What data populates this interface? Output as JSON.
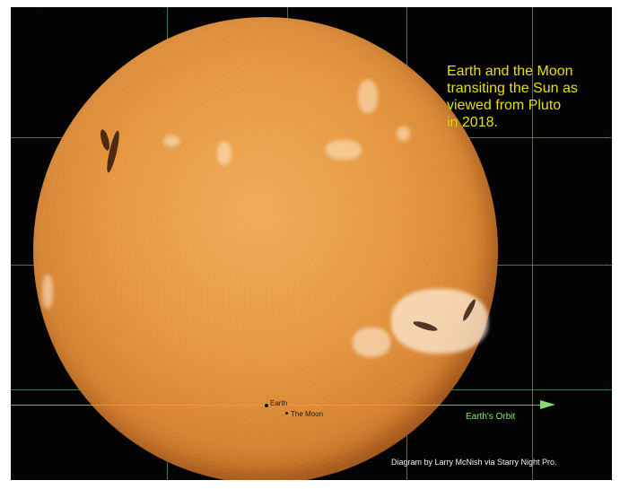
{
  "caption": "Earth and the Moon\ntransiting the Sun as\nviewed from Pluto\nin 2018.",
  "labels": {
    "earth": "Earth",
    "moon": "The Moon",
    "orbit": "Earth's Orbit",
    "credit": "Diagram by Larry McNish via Starry Night Pro."
  },
  "colors": {
    "caption": "#e7e100",
    "orbit": "#84df6d"
  }
}
